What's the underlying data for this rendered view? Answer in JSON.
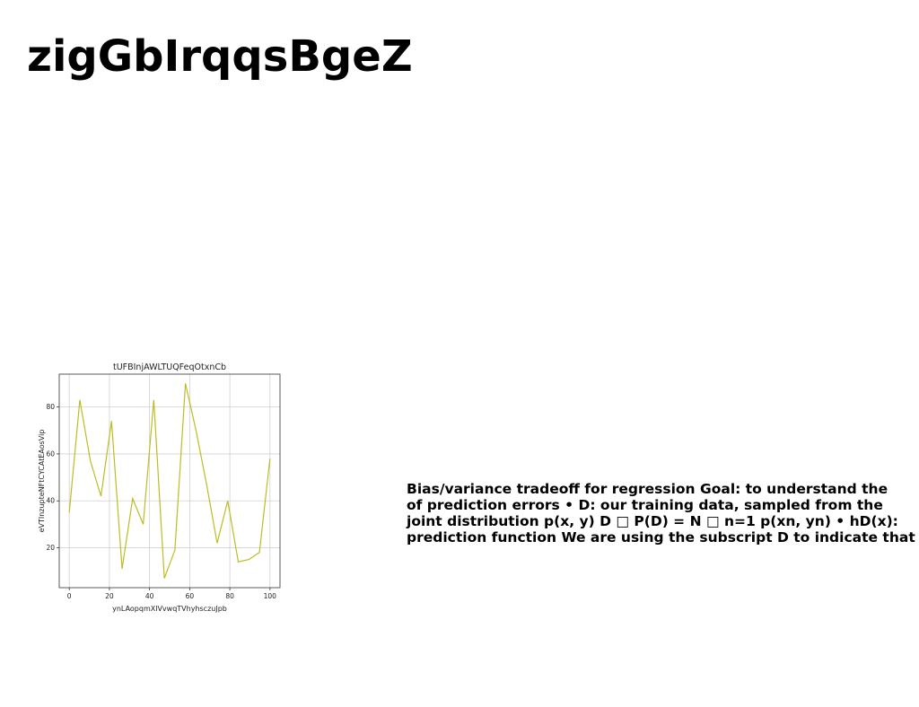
{
  "page": {
    "title": "zigGbIrqqsBgeZ",
    "body_text": "Bias/variance tradeoff for regression Goal: to understand the\nof prediction errors • D: our training data, sampled from the\njoint distribution p(x, y) D □ P(D) = N □ n=1 p(xn, yn) • hD(x):\nprediction function We are using the subscript D to indicate that"
  },
  "chart_data": {
    "type": "line",
    "title": "tUFBInjAWLTUQFeqOtxnCb",
    "xlabel": "ynLAopqmXlVvwqTVhyhsczuJpb",
    "ylabel": "eVTInzupteNFtCYCAtEAosVip",
    "x": [
      0,
      5.26,
      10.53,
      15.79,
      21.05,
      26.32,
      31.58,
      36.84,
      42.11,
      47.37,
      52.63,
      57.89,
      63.16,
      68.42,
      73.68,
      78.95,
      84.21,
      89.47,
      94.74,
      100
    ],
    "series": [
      {
        "values": [
          35,
          83,
          57,
          42,
          74,
          11,
          41,
          30,
          83,
          7,
          19,
          90,
          70,
          47,
          22,
          40,
          14,
          15,
          18,
          58
        ],
        "color": "#bcbd22"
      }
    ],
    "xlim": [
      -5,
      105
    ],
    "ylim": [
      3,
      94
    ],
    "xticks": [
      0,
      20,
      40,
      60,
      80,
      100
    ],
    "yticks": [
      20,
      40,
      60,
      80
    ],
    "grid": true,
    "legend": "none"
  }
}
